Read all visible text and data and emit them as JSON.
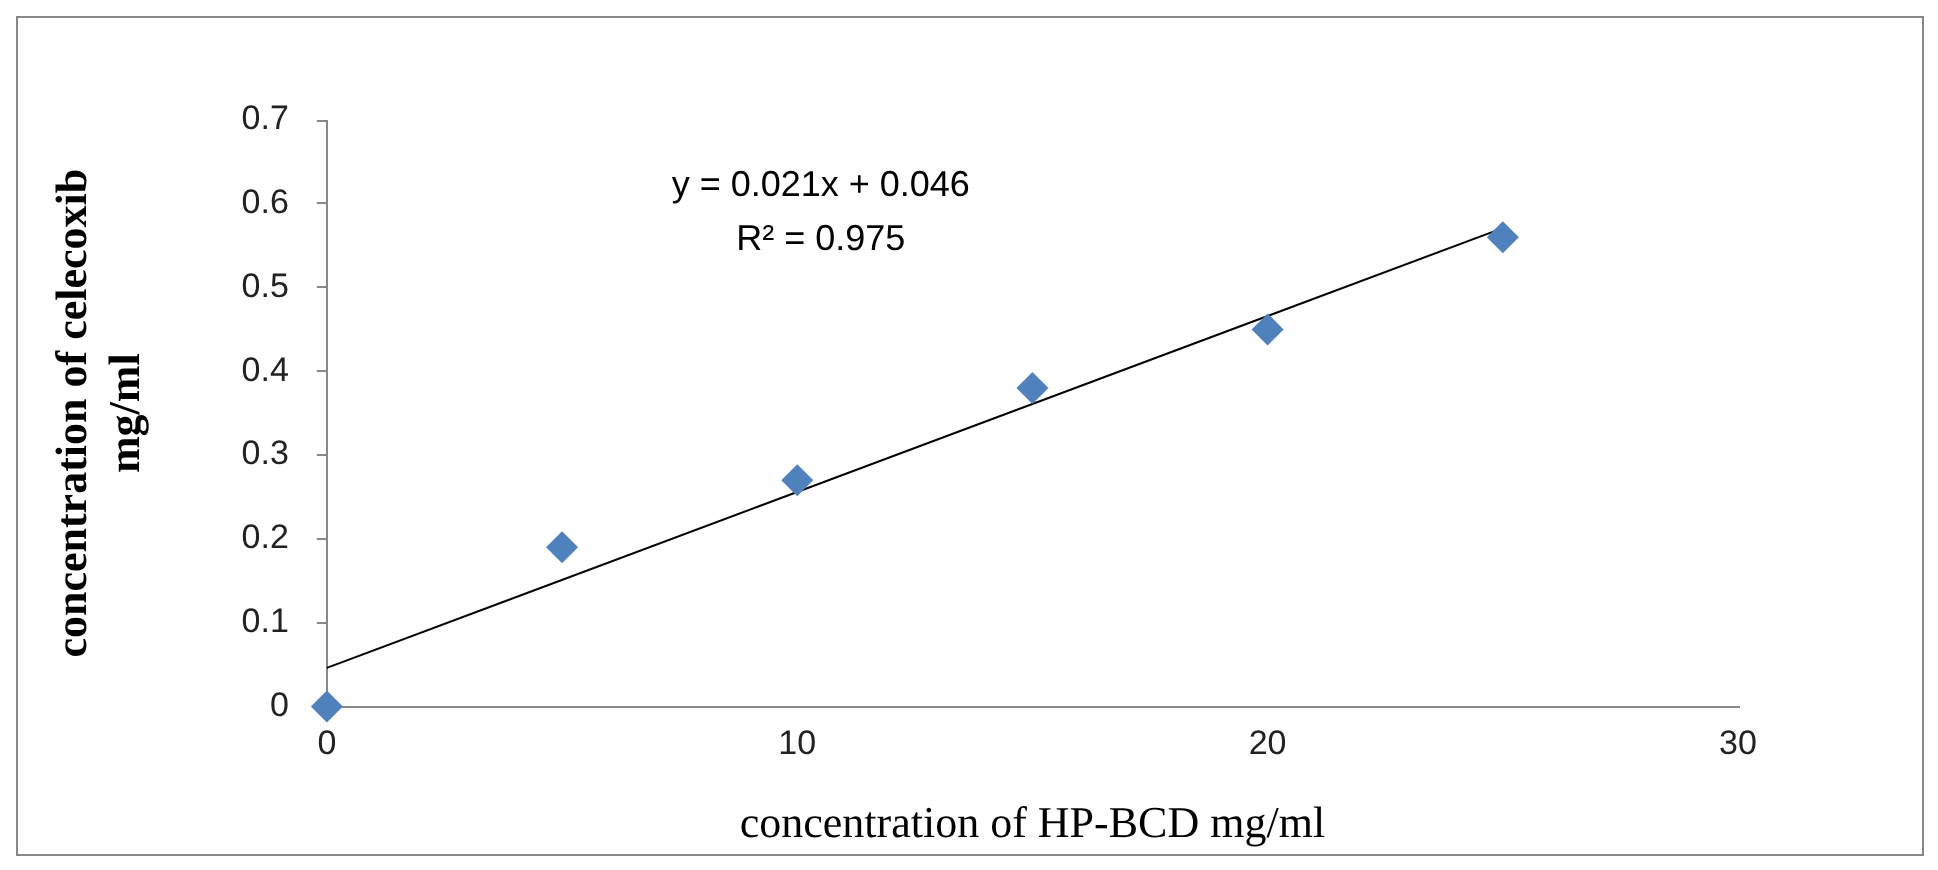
{
  "chart_data": {
    "type": "scatter",
    "xlabel": "concentration of HP-BCD mg/ml",
    "ylabel": "concentration of celecoxib\nmg/ml",
    "x": [
      0,
      5,
      10,
      15,
      20,
      25
    ],
    "series": [
      {
        "color": "#4f81bd",
        "marker": "diamond",
        "values": [
          0,
          0.19,
          0.27,
          0.38,
          0.45,
          0.56
        ]
      },
      {
        "type": "line",
        "color": "#000000",
        "marker": "none",
        "x": [
          0,
          25
        ],
        "values": [
          0.046,
          0.571
        ]
      }
    ],
    "annotations": [
      "y = 0.021x + 0.046",
      "R² = 0.975"
    ],
    "xlim": [
      0,
      30
    ],
    "xticks": [
      0,
      10,
      20,
      30
    ],
    "ylim": [
      0,
      0.7
    ],
    "yticks": [
      0,
      0.1,
      0.2,
      0.3,
      0.4,
      0.5,
      0.6,
      0.7
    ],
    "grid": false,
    "legend": false
  }
}
